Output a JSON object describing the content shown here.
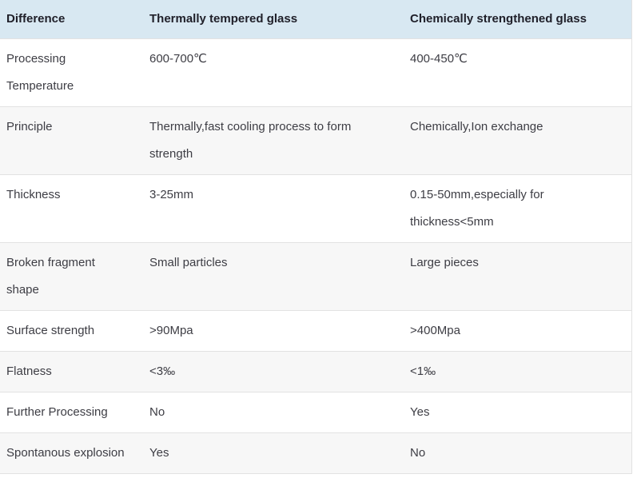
{
  "colors": {
    "header_bg": "#d8e8f2",
    "row_alt_bg": "#f7f7f7",
    "border": "#e2e2e2",
    "header_text": "#20202a",
    "body_text": "#3d3d44",
    "page_bg": "#ffffff"
  },
  "table": {
    "columns": [
      {
        "label": "Difference"
      },
      {
        "label": "Thermally tempered glass"
      },
      {
        "label": "Chemically strengthened glass"
      }
    ],
    "rows": [
      {
        "difference": "Processing\nTemperature",
        "thermal": "600-700℃",
        "chemical": "400-450℃"
      },
      {
        "difference": "Principle",
        "thermal": "Thermally,fast cooling process to form\nstrength",
        "chemical": "Chemically,Ion exchange"
      },
      {
        "difference": "Thickness",
        "thermal": "3-25mm",
        "chemical": "0.15-50mm,especially for\nthickness<5mm"
      },
      {
        "difference": "Broken fragment\nshape",
        "thermal": "Small particles",
        "chemical": "Large pieces"
      },
      {
        "difference": "Surface strength",
        "thermal": ">90Mpa",
        "chemical": ">400Mpa"
      },
      {
        "difference": "Flatness",
        "thermal": "<3‰",
        "chemical": "<1‰"
      },
      {
        "difference": "Further Processing",
        "thermal": "No",
        "chemical": "Yes"
      },
      {
        "difference": "Spontanous explosion",
        "thermal": "Yes",
        "chemical": "No"
      }
    ]
  }
}
